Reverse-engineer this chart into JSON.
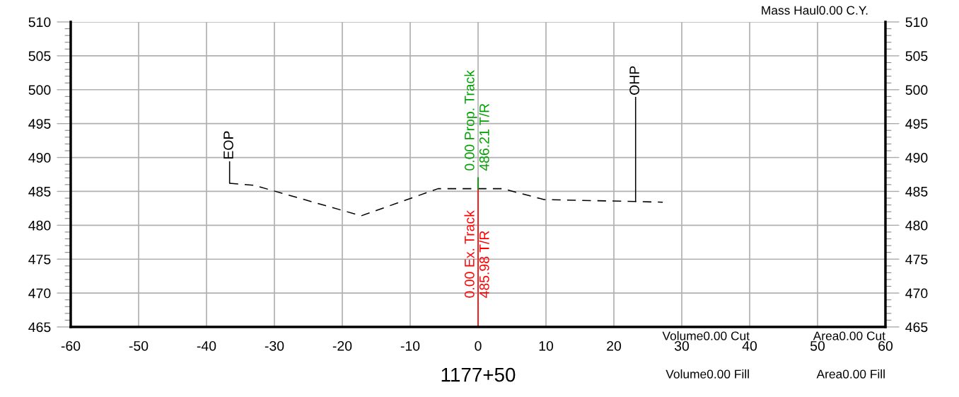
{
  "chart_data": {
    "type": "line",
    "xlabel": "1177+50",
    "xlim": [
      -60,
      60
    ],
    "xticks": [
      -60,
      -50,
      -40,
      -30,
      -20,
      -10,
      0,
      10,
      20,
      30,
      40,
      50,
      60
    ],
    "ylim": [
      465,
      510
    ],
    "yticks": [
      465,
      470,
      475,
      480,
      485,
      490,
      495,
      500,
      505,
      510
    ],
    "y2lim": [
      465,
      510
    ],
    "y2ticks": [
      465,
      470,
      475,
      480,
      485,
      490,
      495,
      500,
      505,
      510
    ],
    "series": [
      {
        "color": "#000000",
        "x": [
          -36.6,
          -33.0,
          -17.2,
          -5.9,
          3.6,
          9.7,
          23.2,
          27.2
        ],
        "values": [
          486.2,
          485.9,
          481.4,
          485.4,
          485.4,
          483.8,
          483.5,
          483.4
        ]
      }
    ],
    "line_style": "dashed",
    "marker": "none",
    "grid": true,
    "ref_lines": [
      {
        "axis": "x",
        "value": 0,
        "label": "0.00 Ex. Track\n485.98 T/R",
        "color": "#ff0000"
      },
      {
        "axis": "x",
        "value": 0,
        "label": "0.00 Prop. Track\n486.21 T/R",
        "color": "#00a000"
      }
    ],
    "annotations": [
      {
        "text": "EOP",
        "x": -36.6,
        "y": 486.2
      },
      {
        "text": "OHP",
        "x": 23.2,
        "y": 483.5
      },
      "Mass Haul0.00 C.Y.",
      "Volume0.00 Cut",
      "Volume0.00 Fill",
      "Area0.00 Cut",
      "Area0.00 Fill"
    ]
  }
}
